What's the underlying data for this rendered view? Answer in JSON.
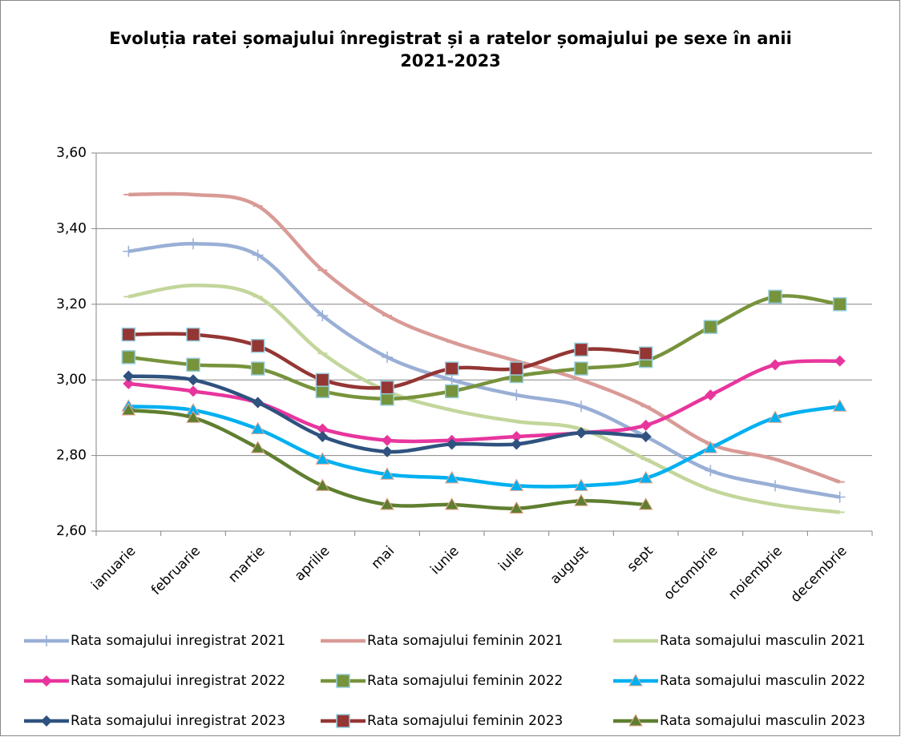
{
  "chart_data": {
    "type": "line",
    "title": "Evoluția ratei șomajului înregistrat și a ratelor șomajului pe sexe în anii 2021-2023",
    "categories": [
      "ianuarie",
      "februarie",
      "martie",
      "aprilie",
      "mai",
      "iunie",
      "iulie",
      "august",
      "sept",
      "octombrie",
      "noiembrie",
      "decembrie"
    ],
    "ylim": [
      2.6,
      3.6
    ],
    "yticks": [
      {
        "value": 2.6,
        "label": "2,60"
      },
      {
        "value": 2.8,
        "label": "2,80"
      },
      {
        "value": 3.0,
        "label": "3,00"
      },
      {
        "value": 3.2,
        "label": "3,20"
      },
      {
        "value": 3.4,
        "label": "3,40"
      },
      {
        "value": 3.6,
        "label": "3,60"
      }
    ],
    "grid": true,
    "series": [
      {
        "name": "Rata somajului inregistrat 2021",
        "color": "#9aafd6",
        "marker": "plus",
        "values": [
          3.34,
          3.36,
          3.33,
          3.17,
          3.06,
          3.0,
          2.96,
          2.93,
          2.85,
          2.76,
          2.72,
          2.69
        ]
      },
      {
        "name": "Rata somajului feminin 2021",
        "color": "#d99a96",
        "marker": "dash",
        "values": [
          3.49,
          3.49,
          3.46,
          3.29,
          3.17,
          3.1,
          3.05,
          3.0,
          2.93,
          2.83,
          2.79,
          2.73
        ]
      },
      {
        "name": "Rata somajului masculin 2021",
        "color": "#c3d69b",
        "marker": "dash",
        "values": [
          3.22,
          3.25,
          3.22,
          3.07,
          2.97,
          2.92,
          2.89,
          2.87,
          2.79,
          2.71,
          2.67,
          2.65
        ]
      },
      {
        "name": "Rata somajului inregistrat 2022",
        "color": "#e8359e",
        "marker": "diamond",
        "values": [
          2.99,
          2.97,
          2.94,
          2.87,
          2.84,
          2.84,
          2.85,
          2.86,
          2.88,
          2.96,
          3.04,
          3.05
        ]
      },
      {
        "name": "Rata somajului feminin 2022",
        "color": "#77933c",
        "marker": "square",
        "values": [
          3.06,
          3.04,
          3.03,
          2.97,
          2.95,
          2.97,
          3.01,
          3.03,
          3.05,
          3.14,
          3.22,
          3.2
        ]
      },
      {
        "name": "Rata somajului masculin 2022",
        "color": "#00b0f0",
        "marker": "triangle",
        "values": [
          2.93,
          2.92,
          2.87,
          2.79,
          2.75,
          2.74,
          2.72,
          2.72,
          2.74,
          2.82,
          2.9,
          2.93
        ]
      },
      {
        "name": "Rata somajului inregistrat 2023",
        "color": "#2f527f",
        "marker": "diamond",
        "values": [
          3.01,
          3.0,
          2.94,
          2.85,
          2.81,
          2.83,
          2.83,
          2.86,
          2.85,
          null,
          null,
          null
        ]
      },
      {
        "name": "Rata somajului feminin 2023",
        "color": "#943634",
        "marker": "square",
        "values": [
          3.12,
          3.12,
          3.09,
          3.0,
          2.98,
          3.03,
          3.03,
          3.08,
          3.07,
          null,
          null,
          null
        ]
      },
      {
        "name": "Rata somajului masculin 2023",
        "color": "#5f7f30",
        "marker": "triangle",
        "values": [
          2.92,
          2.9,
          2.82,
          2.72,
          2.67,
          2.67,
          2.66,
          2.68,
          2.67,
          null,
          null,
          null
        ]
      }
    ]
  }
}
